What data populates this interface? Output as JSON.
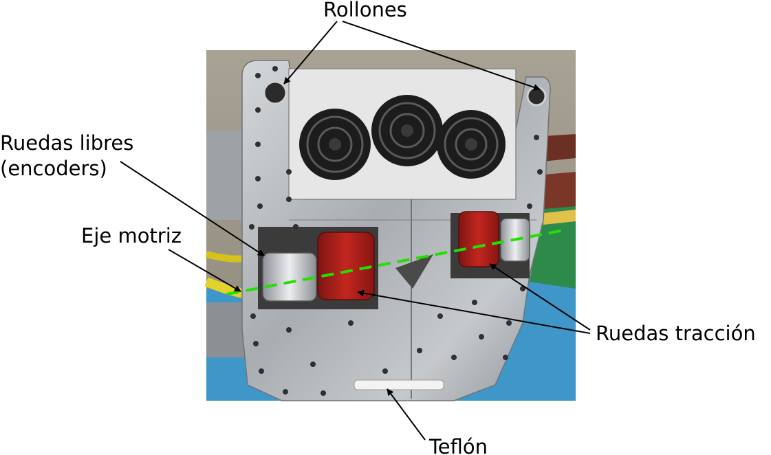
{
  "figure": {
    "labels": {
      "rollones": "Rollones",
      "ruedas_libres_line1": "Ruedas libres",
      "ruedas_libres_line2": "(encoders)",
      "eje_motriz": "Eje motriz",
      "ruedas_traccion": "Ruedas tracción",
      "teflon": "Teflón"
    }
  },
  "colors": {
    "arrow": "#000000",
    "axis_dash": "#22e000",
    "photo_background": "#9a9484",
    "floor": "#3f97c9",
    "aluminium_plate": "#b9bcbf",
    "traction_wheel": "#b3201c",
    "fan_housing": "#e6e6e6"
  }
}
